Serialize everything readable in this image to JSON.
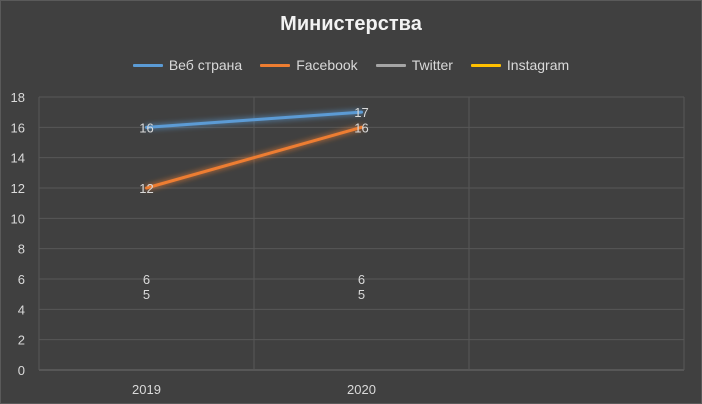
{
  "chart_data": {
    "type": "line",
    "title": "Министерства",
    "categories": [
      "2019",
      "2020"
    ],
    "series": [
      {
        "name": "Веб страна",
        "values": [
          16,
          17
        ],
        "color": "#5b9bd5"
      },
      {
        "name": "Facebook",
        "values": [
          12,
          16
        ],
        "color": "#ed7d31"
      },
      {
        "name": "Twitter",
        "values": [
          6,
          6
        ],
        "color": "#a5a5a5"
      },
      {
        "name": "Instagram",
        "values": [
          5,
          5
        ],
        "color": "#ffc000"
      }
    ],
    "y_ticks": [
      "0",
      "2",
      "4",
      "6",
      "8",
      "10",
      "12",
      "14",
      "16",
      "18"
    ],
    "ylim": [
      0,
      18
    ],
    "grid": true,
    "legend_position": "top",
    "data_labels": true
  }
}
